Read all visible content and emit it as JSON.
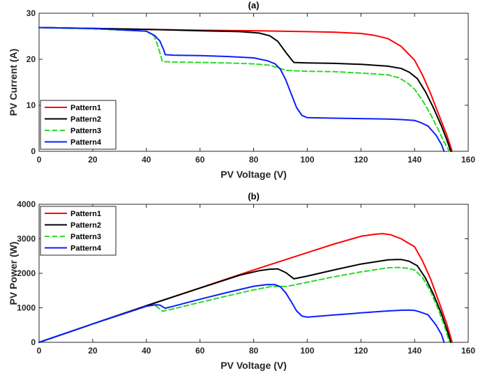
{
  "chart_data": [
    {
      "type": "line",
      "title": "(a)",
      "xlabel": "PV Voltage (V)",
      "ylabel": "PV Current (A)",
      "xlim": [
        0,
        160
      ],
      "ylim": [
        0,
        30
      ],
      "xticks": [
        "0",
        "20",
        "40",
        "60",
        "80",
        "100",
        "120",
        "140",
        "160"
      ],
      "yticks": [
        "0",
        "10",
        "20",
        "30"
      ],
      "grid": false,
      "legend_position": "bottom-left",
      "series": [
        {
          "name": "Pattern1",
          "color": "#ff0000",
          "dash": "solid",
          "x": [
            0,
            20,
            40,
            60,
            80,
            100,
            110,
            120,
            125,
            130,
            135,
            140,
            143,
            146,
            149,
            152,
            154
          ],
          "y": [
            26.9,
            26.7,
            26.5,
            26.3,
            26.2,
            26.0,
            25.9,
            25.6,
            25.2,
            24.5,
            22.8,
            19.8,
            16.5,
            12.5,
            8.0,
            3.5,
            0
          ]
        },
        {
          "name": "Pattern2",
          "color": "#000000",
          "dash": "solid",
          "x": [
            0,
            20,
            40,
            60,
            75,
            82,
            86,
            89,
            92,
            94,
            95,
            100,
            110,
            120,
            130,
            135,
            138,
            141,
            144,
            147,
            150,
            152,
            153.5
          ],
          "y": [
            26.9,
            26.7,
            26.5,
            26.2,
            26.0,
            25.7,
            25.1,
            23.9,
            21.5,
            20.0,
            19.3,
            19.2,
            19.1,
            18.9,
            18.5,
            18.0,
            17.2,
            15.8,
            13.0,
            9.5,
            5.5,
            2.5,
            0
          ]
        },
        {
          "name": "Pattern3",
          "color": "#2bd92b",
          "dash": "dashed",
          "x": [
            0,
            20,
            40,
            43,
            44.5,
            45.5,
            46,
            50,
            60,
            70,
            80,
            86,
            90,
            92,
            95,
            100,
            110,
            120,
            130,
            134,
            137,
            140,
            143,
            146,
            149,
            151,
            153
          ],
          "y": [
            26.9,
            26.6,
            26.1,
            25.0,
            22.5,
            20.5,
            19.5,
            19.4,
            19.3,
            19.2,
            19.0,
            18.7,
            18.0,
            17.6,
            17.5,
            17.4,
            17.3,
            17.0,
            16.6,
            16.0,
            15.0,
            13.5,
            11.0,
            8.0,
            4.5,
            2.0,
            0
          ]
        },
        {
          "name": "Pattern4",
          "color": "#0a1eff",
          "dash": "solid",
          "x": [
            0,
            20,
            40,
            43,
            45,
            46.5,
            47,
            50,
            60,
            70,
            80,
            85,
            88,
            90,
            92,
            94,
            96,
            98,
            100,
            110,
            120,
            130,
            135,
            140,
            142,
            145,
            148,
            150,
            151
          ],
          "y": [
            26.9,
            26.7,
            26.1,
            25.2,
            24.0,
            22.0,
            21.0,
            20.9,
            20.8,
            20.6,
            20.3,
            19.7,
            19.0,
            17.8,
            15.5,
            12.5,
            9.5,
            7.8,
            7.3,
            7.2,
            7.1,
            7.0,
            6.9,
            6.7,
            6.3,
            5.5,
            3.5,
            1.5,
            0
          ]
        }
      ]
    },
    {
      "type": "line",
      "title": "(b)",
      "xlabel": "PV Voltage (V)",
      "ylabel": "PV Power (W)",
      "xlim": [
        0,
        160
      ],
      "ylim": [
        0,
        4000
      ],
      "xticks": [
        "0",
        "20",
        "40",
        "60",
        "80",
        "100",
        "120",
        "140",
        "160"
      ],
      "yticks": [
        "0",
        "1000",
        "2000",
        "3000",
        "4000"
      ],
      "grid": false,
      "legend_position": "top-left",
      "series": [
        {
          "name": "Pattern1",
          "color": "#ff0000",
          "dash": "solid",
          "x": [
            0,
            20,
            40,
            60,
            80,
            100,
            110,
            120,
            125,
            128,
            131,
            135,
            138,
            140,
            143,
            146,
            149,
            152,
            154
          ],
          "y": [
            0,
            534,
            1060,
            1578,
            2096,
            2600,
            2849,
            3072,
            3130,
            3150,
            3120,
            3000,
            2860,
            2770,
            2350,
            1830,
            1190,
            530,
            0
          ]
        },
        {
          "name": "Pattern2",
          "color": "#000000",
          "dash": "solid",
          "x": [
            0,
            20,
            40,
            60,
            75,
            82,
            86,
            89,
            92,
            95,
            100,
            110,
            120,
            130,
            133,
            135,
            138,
            141,
            144,
            147,
            150,
            152,
            153.5
          ],
          "y": [
            0,
            534,
            1060,
            1572,
            1950,
            2074,
            2120,
            2130,
            2020,
            1840,
            1920,
            2100,
            2268,
            2390,
            2400,
            2400,
            2350,
            2220,
            1870,
            1400,
            830,
            380,
            0
          ]
        },
        {
          "name": "Pattern3",
          "color": "#2bd92b",
          "dash": "dashed",
          "x": [
            0,
            20,
            40,
            43,
            44.5,
            46,
            50,
            60,
            70,
            80,
            86,
            90,
            92,
            95,
            100,
            110,
            120,
            130,
            134,
            137,
            140,
            143,
            146,
            149,
            151,
            153
          ],
          "y": [
            0,
            532,
            1044,
            1075,
            1000,
            900,
            970,
            1158,
            1344,
            1520,
            1610,
            1620,
            1620,
            1660,
            1740,
            1900,
            2040,
            2160,
            2170,
            2150,
            2100,
            1870,
            1470,
            920,
            500,
            0
          ]
        },
        {
          "name": "Pattern4",
          "color": "#0a1eff",
          "dash": "solid",
          "x": [
            0,
            20,
            40,
            43,
            45,
            47,
            50,
            60,
            70,
            80,
            85,
            88,
            90,
            92,
            94,
            96,
            98,
            100,
            110,
            120,
            130,
            135,
            138,
            140,
            142,
            145,
            148,
            150,
            151
          ],
          "y": [
            0,
            534,
            1044,
            1084,
            1080,
            987,
            1045,
            1248,
            1442,
            1624,
            1675,
            1670,
            1610,
            1430,
            1180,
            912,
            760,
            730,
            792,
            852,
            910,
            930,
            935,
            925,
            880,
            800,
            500,
            230,
            0
          ]
        }
      ]
    }
  ]
}
